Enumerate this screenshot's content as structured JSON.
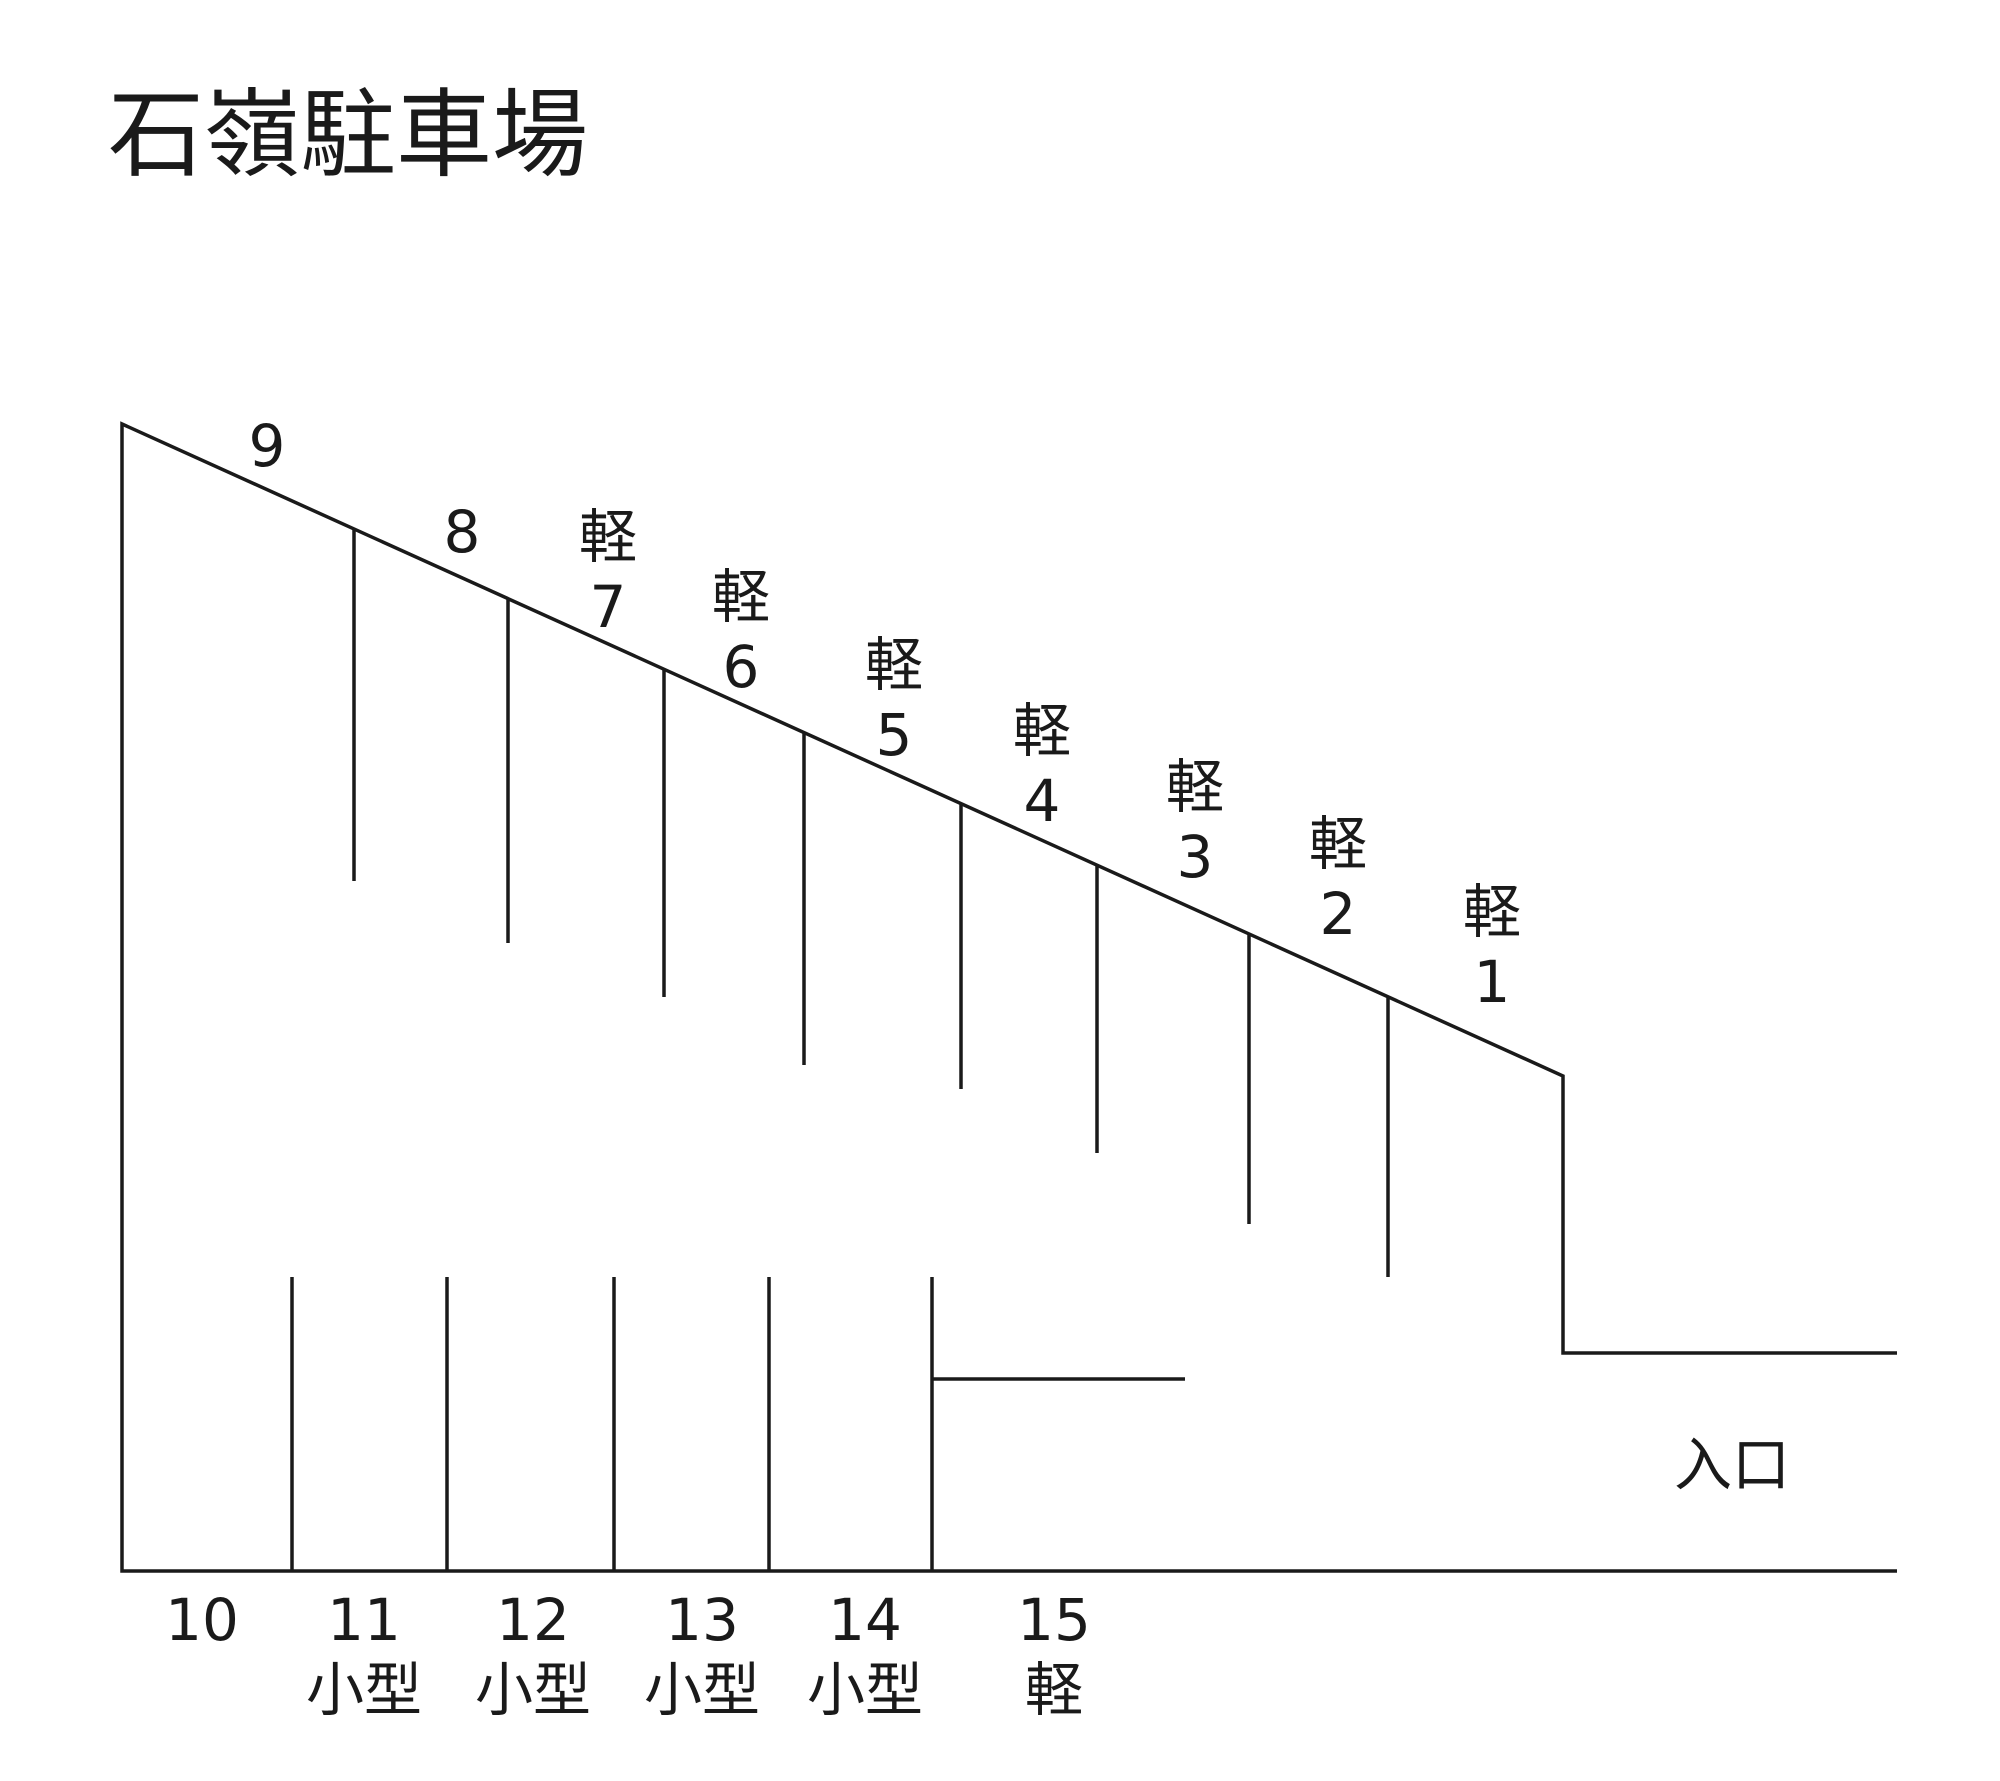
{
  "title": "石嶺駐車場",
  "entrance_label": "入口",
  "upper_spaces": [
    {
      "number": "9",
      "type": ""
    },
    {
      "number": "8",
      "type": ""
    },
    {
      "number": "7",
      "type": "軽"
    },
    {
      "number": "6",
      "type": "軽"
    },
    {
      "number": "5",
      "type": "軽"
    },
    {
      "number": "4",
      "type": "軽"
    },
    {
      "number": "3",
      "type": "軽"
    },
    {
      "number": "2",
      "type": "軽"
    },
    {
      "number": "1",
      "type": "軽"
    }
  ],
  "lower_spaces": [
    {
      "number": "10",
      "type": ""
    },
    {
      "number": "11",
      "type": "小型"
    },
    {
      "number": "12",
      "type": "小型"
    },
    {
      "number": "13",
      "type": "小型"
    },
    {
      "number": "14",
      "type": "小型"
    },
    {
      "number": "15",
      "type": "軽"
    }
  ]
}
